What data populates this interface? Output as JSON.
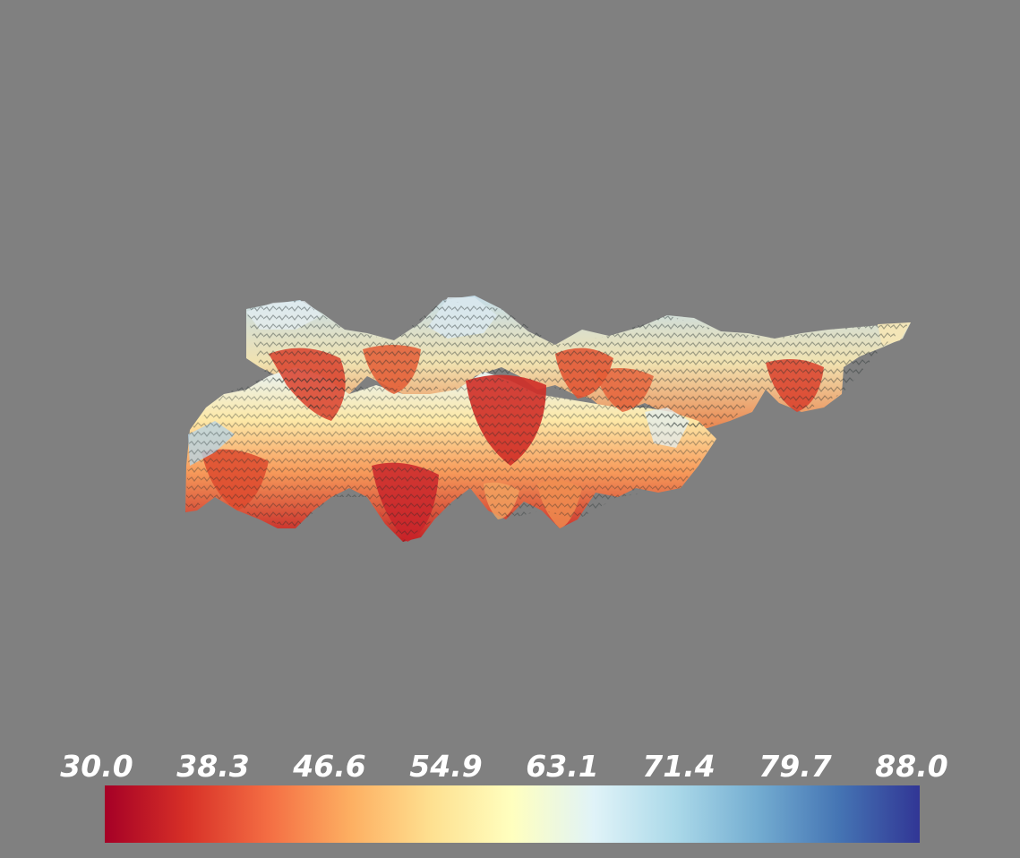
{
  "scene": {
    "background_color": "#808080",
    "object": "surface-mesh"
  },
  "colorbar": {
    "min": 30.0,
    "max": 88.0,
    "ticks": [
      "30.0",
      "38.3",
      "46.6",
      "54.9",
      "63.1",
      "71.4",
      "79.7",
      "88.0"
    ],
    "colormap": [
      "#a50026",
      "#d73027",
      "#f46d43",
      "#fdae61",
      "#fee090",
      "#ffffbf",
      "#e0f3f8",
      "#abd9e9",
      "#74add1",
      "#4575b4",
      "#313695"
    ]
  }
}
